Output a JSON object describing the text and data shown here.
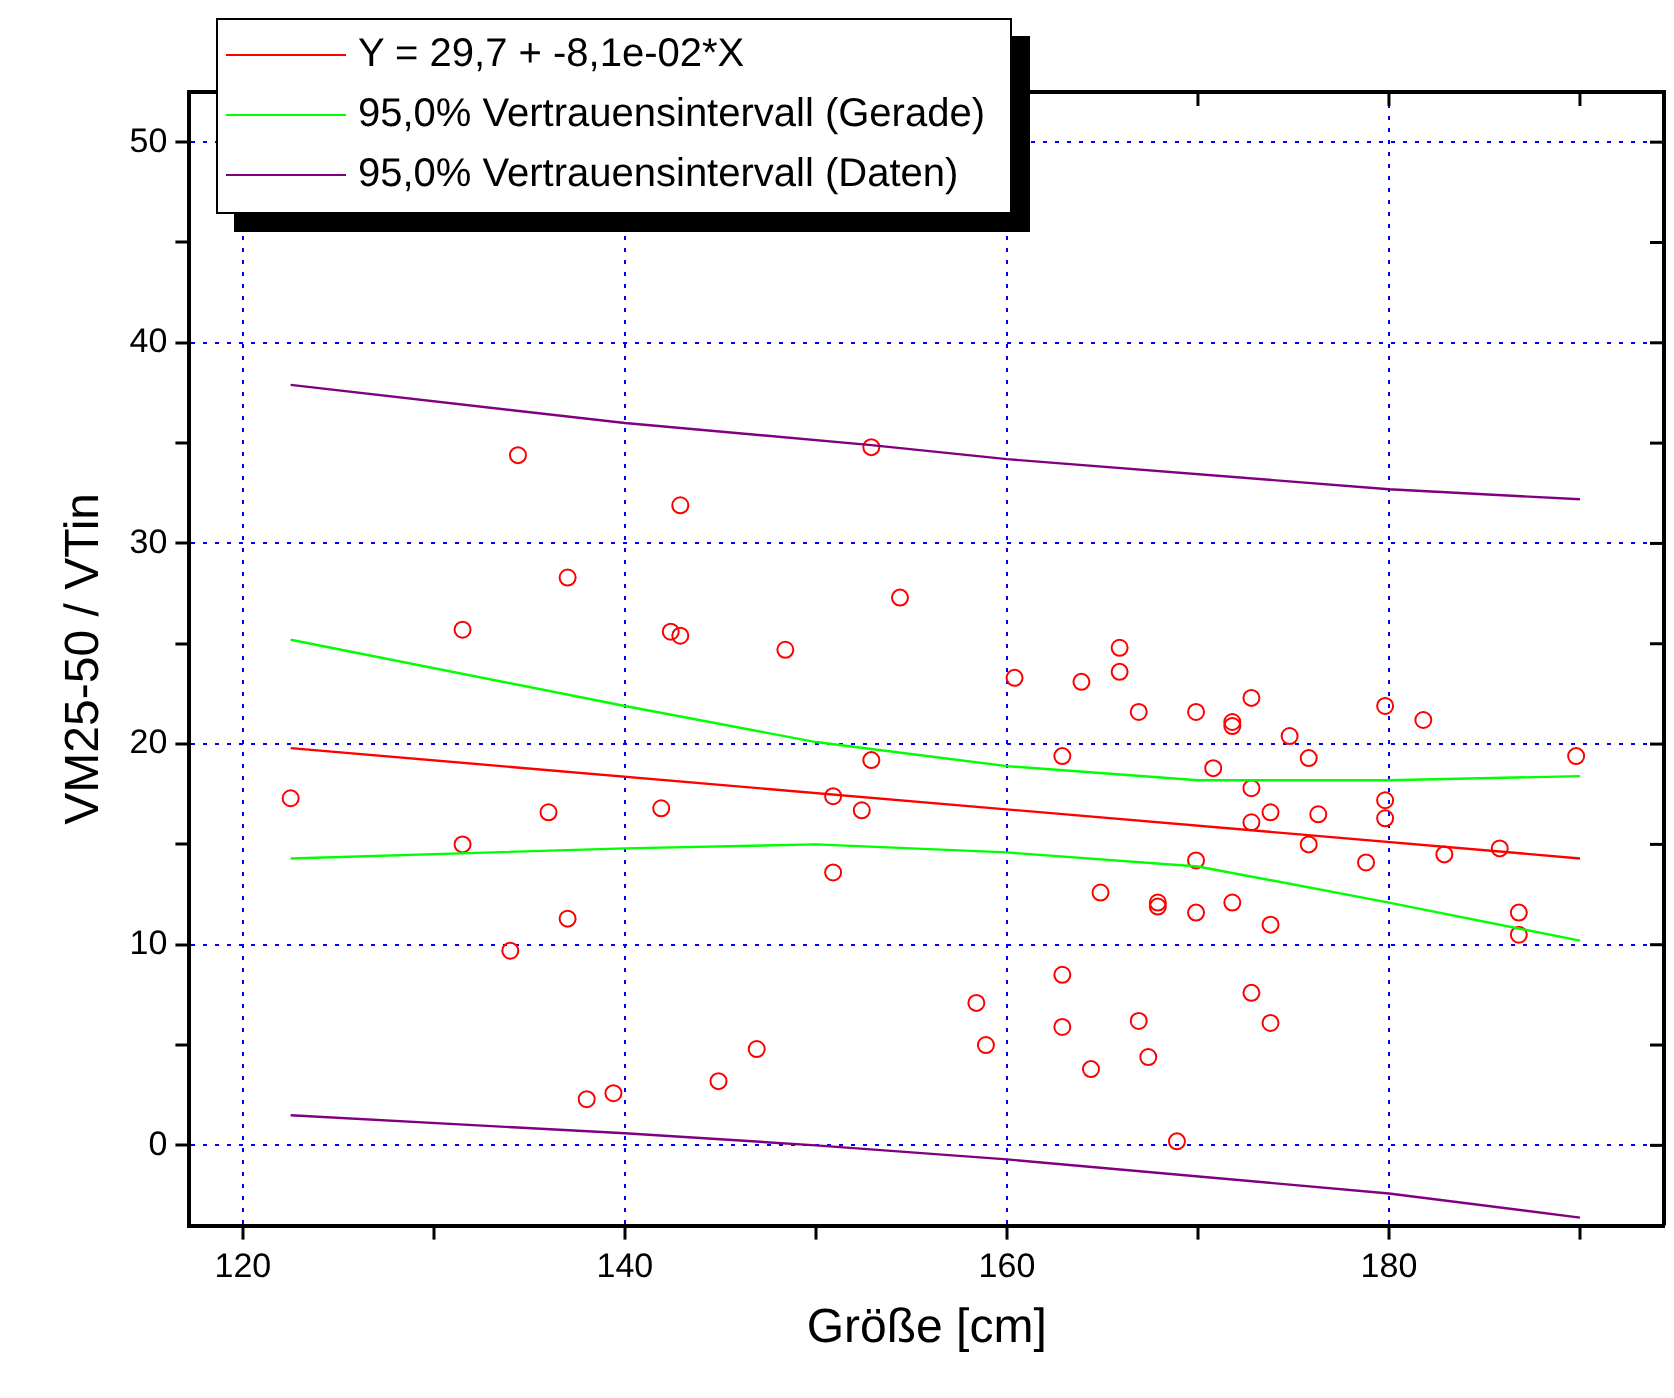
{
  "chart_data": {
    "type": "scatter",
    "xlabel": "Größe [cm]",
    "ylabel": "VM25-50 / VTin",
    "xlim": [
      117.2,
      194.4
    ],
    "ylim": [
      -4,
      52.5
    ],
    "xticks": [
      120,
      {
        "value": 130,
        "label": null
      },
      140,
      {
        "value": 150,
        "label": null
      },
      160,
      {
        "value": 170,
        "label": null
      },
      180,
      {
        "value": 190,
        "label": null
      }
    ],
    "yticks": [
      0,
      {
        "value": 5,
        "label": null
      },
      10,
      {
        "value": 15,
        "label": null
      },
      20,
      {
        "value": 25,
        "label": null
      },
      30,
      {
        "value": 35,
        "label": null
      },
      40,
      {
        "value": 45,
        "label": null
      },
      50
    ],
    "grid": true,
    "legend": "top left",
    "series": [
      {
        "type": "line",
        "name": "Y = 29,7 + -8,1e-02*X",
        "color": "#ff0000",
        "marker": "none",
        "x": [
          122.5,
          190
        ],
        "values": [
          19.8,
          14.3
        ]
      },
      {
        "type": "line",
        "name": "95,0% Vertrauensintervall (Gerade)",
        "color": "#00ff00",
        "marker": "none",
        "x": [
          122.5,
          140,
          150,
          160,
          170,
          180,
          190
        ],
        "values": [
          25.2,
          21.9,
          20.1,
          18.9,
          18.2,
          18.2,
          18.4
        ]
      },
      {
        "type": "line",
        "color": "#00ff00",
        "marker": "none",
        "x": [
          122.5,
          140,
          150,
          160,
          170,
          180,
          190
        ],
        "values": [
          14.3,
          14.8,
          15.0,
          14.6,
          13.9,
          12.1,
          10.2
        ]
      },
      {
        "type": "line",
        "name": "95,0% Vertrauensintervall (Daten)",
        "color": "#800080",
        "marker": "none",
        "x": [
          122.5,
          140,
          152.9,
          160,
          180,
          190
        ],
        "values": [
          37.9,
          36.0,
          34.9,
          34.2,
          32.7,
          32.2
        ]
      },
      {
        "type": "line",
        "color": "#800080",
        "marker": "none",
        "x": [
          122.5,
          140,
          150,
          160,
          180,
          190
        ],
        "values": [
          1.5,
          0.6,
          0.0,
          -0.7,
          -2.4,
          -3.6
        ]
      },
      {
        "color": "#ff0000",
        "marker": "circle",
        "x": [
          134.4,
          142.9,
          152.9,
          137.0,
          154.4,
          131.5,
          142.4,
          142.9,
          148.4,
          122.5,
          136.0,
          141.9,
          131.5,
          150.9,
          152.4,
          152.9,
          150.9,
          137.0,
          134.0,
          158.4,
          158.9,
          146.9,
          144.9,
          138.0,
          139.4,
          165.9,
          165.9,
          160.4,
          163.9,
          166.9,
          169.9,
          171.8,
          171.8,
          172.8,
          174.8,
          175.8,
          179.8,
          181.8,
          189.8,
          162.9,
          170.8,
          172.8,
          173.8,
          176.3,
          172.8,
          179.8,
          179.8,
          175.8,
          182.9,
          185.8,
          178.8,
          169.9,
          164.9,
          167.9,
          167.9,
          169.9,
          171.8,
          173.8,
          186.8,
          186.8,
          162.9,
          172.8,
          162.9,
          166.9,
          173.8,
          167.4,
          164.4,
          168.9
        ],
        "values": [
          34.4,
          31.9,
          34.8,
          28.3,
          27.3,
          25.7,
          25.6,
          25.4,
          24.7,
          17.3,
          16.6,
          16.8,
          15.0,
          17.4,
          16.7,
          19.2,
          13.6,
          11.3,
          9.7,
          7.1,
          5.0,
          4.8,
          3.2,
          2.3,
          2.6,
          24.8,
          23.6,
          23.3,
          23.1,
          21.6,
          21.6,
          21.1,
          20.9,
          22.3,
          20.4,
          19.3,
          21.9,
          21.2,
          19.4,
          19.4,
          18.8,
          17.8,
          16.6,
          16.5,
          16.1,
          17.2,
          16.3,
          15.0,
          14.5,
          14.8,
          14.1,
          14.2,
          12.6,
          12.1,
          11.9,
          11.6,
          12.1,
          11.0,
          11.6,
          10.5,
          8.5,
          7.6,
          5.9,
          6.2,
          6.1,
          4.4,
          3.8,
          0.2
        ]
      }
    ]
  }
}
